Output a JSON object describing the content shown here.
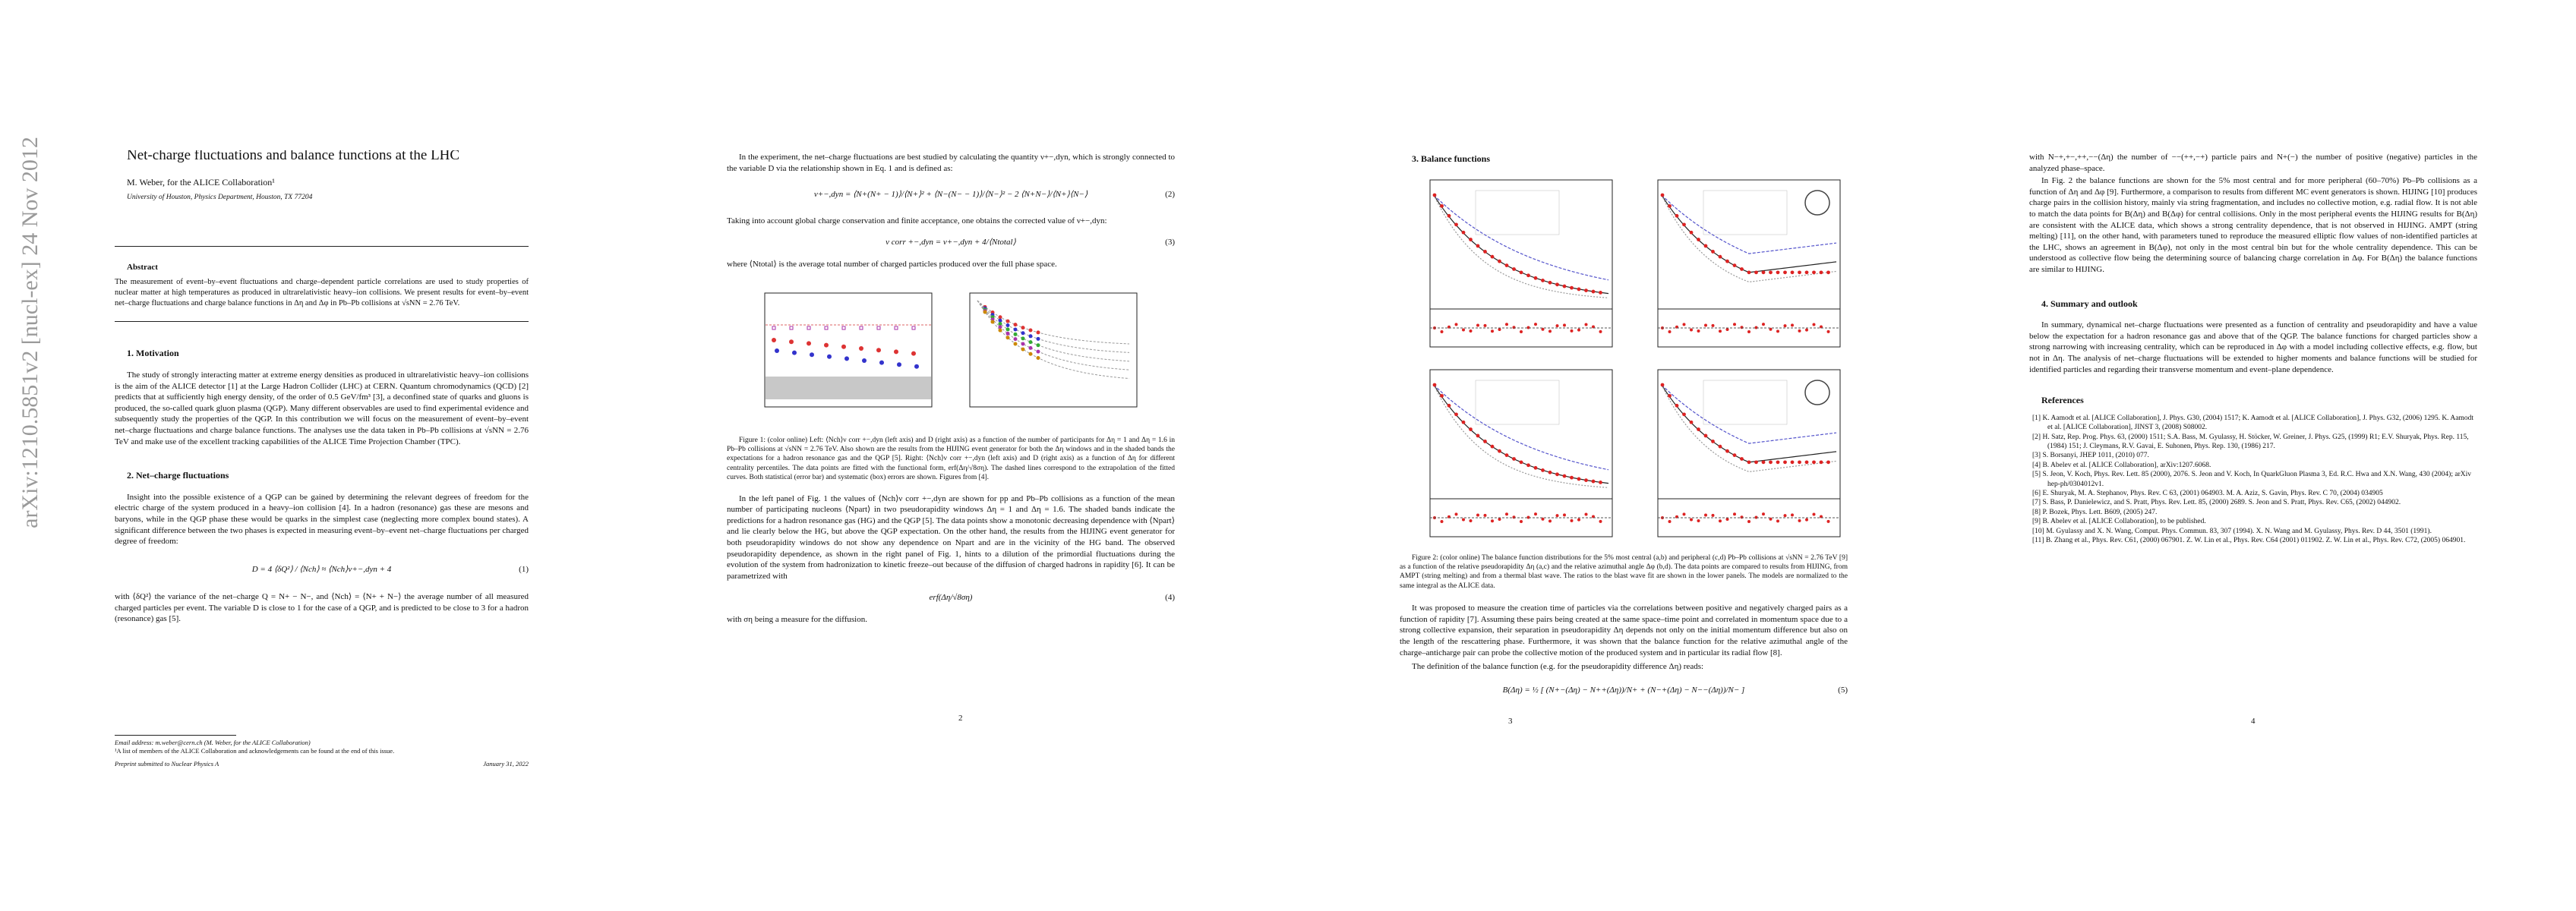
{
  "sidebar": "arXiv:1210.5851v2  [nucl-ex]  24 Nov 2012",
  "page1": {
    "title": "Net-charge fluctuations and balance functions at the LHC",
    "author": "M. Weber, for the ALICE Collaboration¹",
    "affiliation": "University of Houston, Physics Department, Houston, TX 77204",
    "abstract_heading": "Abstract",
    "abstract": "The measurement of event–by–event fluctuations and charge–dependent particle correlations are used to study properties of nuclear matter at high temperatures as produced in ultrarelativistic heavy–ion collisions. We present results for event–by–event net–charge fluctuations and charge balance functions in Δη and Δφ in Pb–Pb collisions at √sNN = 2.76 TeV.",
    "s1_heading": "1.  Motivation",
    "s1_p1": "The study of strongly interacting matter at extreme energy densities as produced in ultrarelativistic heavy–ion collisions is the aim of the ALICE detector [1] at the Large Hadron Collider (LHC) at CERN. Quantum chromodynamics (QCD) [2] predicts that at sufficiently high energy density, of the order of 0.5 GeV/fm³ [3], a deconfined state of quarks and gluons is produced, the so-called quark gluon plasma (QGP). Many different observables are used to find experimental evidence and subsequently study the properties of the QGP. In this contribution we will focus on the measurement of event–by–event net–charge fluctuations and charge balance functions. The analyses use the data taken in Pb–Pb collisions at √sNN = 2.76 TeV and make use of the excellent tracking capabilities of the ALICE Time Projection Chamber (TPC).",
    "s2_heading": "2.  Net–charge fluctuations",
    "s2_p1": "Insight into the possible existence of a QGP can be gained by determining the relevant degrees of freedom for the electric charge of the system produced in a heavy–ion collision [4]. In a hadron (resonance) gas these are mesons and baryons, while in the QGP phase these would be quarks in the simplest case (neglecting more complex bound states). A significant difference between the two phases is expected in measuring event–by–event net–charge fluctuations per charged degree of freedom:",
    "eq1": "D = 4 ⟨δQ²⟩ / ⟨Nch⟩ ≈ ⟨Nch⟩ν+−,dyn + 4",
    "eq1_number": "(1)",
    "s2_p2": "with ⟨δQ²⟩ the variance of the net–charge Q = N+ − N−, and ⟨Nch⟩ = ⟨N+ + N−⟩ the average number of all measured charged particles per event. The variable D is close to 1 for the case of a QGP, and is predicted to be close to 3 for a hadron (resonance) gas [5].",
    "footnote_email": "Email address: m.weber@cern.ch (M. Weber, for the ALICE Collaboration)",
    "footnote_1": "¹A list of members of the ALICE Collaboration and acknowledgements can be found at the end of this issue.",
    "footer_left": "Preprint submitted to Nuclear Physics A",
    "footer_right": "January 31, 2022"
  },
  "page2": {
    "p1": "In the experiment, the net–charge fluctuations are best studied by calculating the quantity ν+−,dyn, which is strongly connected to the variable D via the relationship shown in Eq. 1 and is defined as:",
    "eq2": "ν+−,dyn = ⟨N+(N+ − 1)⟩/⟨N+⟩² + ⟨N−(N− − 1)⟩/⟨N−⟩² − 2 ⟨N+N−⟩/⟨N+⟩⟨N−⟩",
    "eq2_number": "(2)",
    "p2": "Taking into account global charge conservation and finite acceptance, one obtains the corrected value of ν+−,dyn:",
    "eq3": "ν corr +−,dyn = ν+−,dyn + 4/⟨Ntotal⟩",
    "eq3_number": "(3)",
    "p3": "where ⟨Ntotal⟩ is the average total number of charged particles produced over the full phase space.",
    "fig1_caption": "Figure 1: (color online) Left: ⟨Nch⟩ν corr +−,dyn (left axis) and D (right axis) as a function of the number of participants for Δη = 1 and Δη = 1.6 in Pb–Pb collisions at √sNN = 2.76 TeV. Also shown are the results from the HIJING event generator for both the Δη windows and in the shaded bands the expectations for a hadron resonance gas and the QGP [5]. Right: ⟨Nch⟩ν corr +−,dyn (left axis) and D (right axis) as a function of Δη for different centrality percentiles. The data points are fitted with the functional form, erf(Δη/√8ση). The dashed lines correspond to the extrapolation of the fitted curves. Both statistical (error bar) and systematic (box) errors are shown. Figures from [4].",
    "p4": "In the left panel of Fig. 1 the values of ⟨Nch⟩ν corr +−,dyn are shown for pp and Pb–Pb collisions as a function of the mean number of participating nucleons ⟨Npart⟩ in two pseudorapidity windows Δη = 1 and Δη = 1.6. The shaded bands indicate the predictions for a hadron resonance gas (HG) and the QGP [5]. The data points show a monotonic decreasing dependence with ⟨Npart⟩ and lie clearly below the HG, but above the QGP expectation. On the other hand, the results from the HIJING event generator for both pseudorapidity windows do not show any dependence on Npart and are in the vicinity of the HG band. The observed pseudorapidity dependence, as shown in the right panel of Fig. 1, hints to a dilution of the primordial fluctuations during the evolution of the system from hadronization to kinetic freeze–out because of the diffusion of charged hadrons in rapidity [6]. It can be parametrized with",
    "eq4": "erf(Δη/√8ση)",
    "eq4_number": "(4)",
    "p5": "with ση being a measure for the diffusion.",
    "page_number": "2"
  },
  "page3": {
    "heading": "3.  Balance functions",
    "fig2_caption": "Figure 2: (color online) The balance function distributions for the 5% most central (a,b) and peripheral (c,d) Pb–Pb collisions at √sNN = 2.76 TeV [9] as a function of the relative pseudorapidity Δη (a,c) and the relative azimuthal angle Δφ (b,d). The data points are compared to results from HIJING, from AMPT (string melting) and from a thermal blast wave. The ratios to the blast wave fit are shown in the lower panels. The models are normalized to the same integral as the ALICE data.",
    "p1": "It was proposed to measure the creation time of particles via the correlations between positive and negatively charged pairs as a function of rapidity [7]. Assuming these pairs being created at the same space–time point and correlated in momentum space due to a strong collective expansion, their separation in pseudorapidity Δη depends not only on the initial momentum difference but also on the length of the rescattering phase. Furthermore, it was shown that the balance function for the relative azimuthal angle of the charge–anticharge pair can probe the collective motion of the produced system and in particular its radial flow [8].",
    "p2": "The definition of the balance function (e.g. for the pseudorapidity difference Δη) reads:",
    "eq5": "B(Δη) = ½ [ (N+−(Δη) − N++(Δη))/N+ + (N−+(Δη) − N−−(Δη))/N− ]",
    "eq5_number": "(5)",
    "page_number": "3"
  },
  "page4": {
    "p1": "with N−+,+−,++,−−(Δη) the number of −−(++,−+) particle pairs and N+(−) the number of positive (negative) particles in the analyzed phase–space.",
    "p2": "In Fig. 2 the balance functions are shown for the 5% most central and for more peripheral (60–70%) Pb–Pb collisions as a function of Δη and Δφ [9]. Furthermore, a comparison to results from different MC event generators is shown. HIJING [10] produces charge pairs in the collision history, mainly via string fragmentation, and includes no collective motion, e.g. radial flow. It is not able to match the data points for B(Δη) and B(Δφ) for central collisions. Only in the most peripheral events the HIJING results for B(Δη) are consistent with the ALICE data, which shows a strong centrality dependence, that is not observed in HIJING. AMPT (string melting) [11], on the other hand, with parameters tuned to reproduce the measured elliptic flow values of non-identified particles at the LHC, shows an agreement in B(Δφ), not only in the most central bin but for the whole centrality dependence. This can be understood as collective flow being the determining source of balancing charge correlation in Δφ. For B(Δη) the balance functions are similar to HIJING.",
    "heading": "4.  Summary and outlook",
    "p3": "In summary, dynamical net–charge fluctuations were presented as a function of centrality and pseudorapidity and have a value below the expectation for a hadron resonance gas and above that of the QGP. The balance functions for charged particles show a strong narrowing with increasing centrality, which can be reproduced in Δφ with a model including collective effects, e.g. flow, but not in Δη. The analysis of net–charge fluctuations will be extended to higher moments and balance functions will be studied for identified particles and regarding their transverse momentum and event–plane dependence.",
    "references_heading": "References",
    "references": [
      "[1] K. Aamodt et al. [ALICE Collaboration], J. Phys. G30, (2004) 1517; K. Aamodt et al. [ALICE Collaboration], J. Phys. G32, (2006) 1295. K. Aamodt et al. [ALICE Collaboration], JINST 3, (2008) S08002.",
      "[2] H. Satz, Rep. Prog. Phys. 63, (2000) 1511; S.A. Bass, M. Gyulassy, H. Stöcker, W. Greiner, J. Phys. G25, (1999) R1; E.V. Shuryak, Phys. Rep. 115, (1984) 151; J. Cleymans, R.V. Gavai, E. Suhonen, Phys. Rep. 130, (1986) 217.",
      "[3] S. Borsanyi, JHEP 1011, (2010) 077.",
      "[4] B. Abelev et al. [ALICE Collaboration], arXiv:1207.6068.",
      "[5] S. Jeon, V. Koch, Phys. Rev. Lett. 85 (2000), 2076. S. Jeon and V. Koch, In QuarkGluon Plasma 3, Ed. R.C. Hwa and X.N. Wang, 430 (2004); arXiv hep-ph/0304012v1.",
      "[6] E. Shuryak, M. A. Stephanov, Phys. Rev. C 63, (2001) 064903. M. A. Aziz, S. Gavin, Phys. Rev. C 70, (2004) 034905",
      "[7] S. Bass, P. Danielewicz, and S. Pratt, Phys. Rev. Lett. 85, (2000) 2689. S. Jeon and S. Pratt, Phys. Rev. C65, (2002) 044902.",
      "[8] P. Bozek, Phys. Lett. B609, (2005) 247.",
      "[9] B. Abelev et al. [ALICE Collaboration], to be published.",
      "[10] M. Gyulassy and X. N. Wang, Comput. Phys. Commun. 83, 307 (1994). X. N. Wang and M. Gyulassy, Phys. Rev. D 44, 3501 (1991).",
      "[11] B. Zhang et al., Phys. Rev. C61, (2000) 067901. Z. W. Lin et al., Phys. Rev. C64 (2001) 011902. Z. W. Lin et al., Phys. Rev. C72, (2005) 064901."
    ],
    "page_number": "4"
  }
}
